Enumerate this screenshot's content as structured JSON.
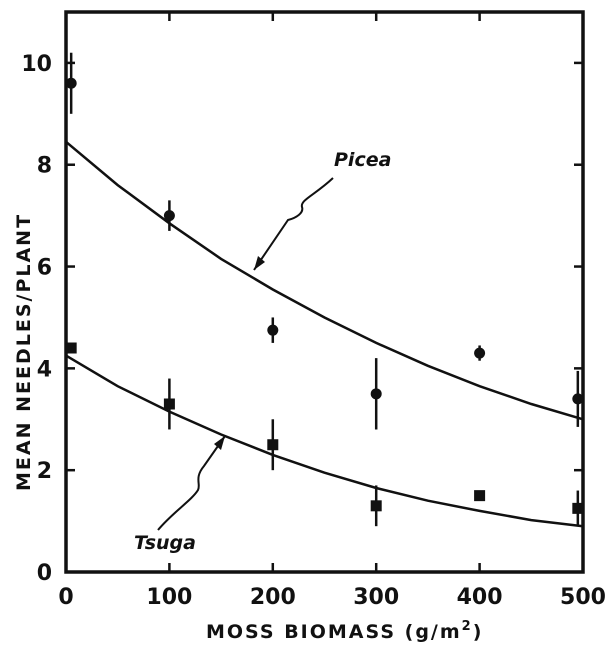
{
  "chart_data": {
    "type": "scatter",
    "xlabel": "MOSS BIOMASS (g/m",
    "xlabel_sup": "2",
    "xlabel_close": ")",
    "ylabel": "MEAN NEEDLES/PLANT",
    "xlim": [
      0,
      500
    ],
    "ylim": [
      0,
      11
    ],
    "xticks": [
      "0",
      "100",
      "200",
      "300",
      "400",
      "500"
    ],
    "yticks": [
      "0",
      "2",
      "4",
      "6",
      "8",
      "10"
    ],
    "grid": false,
    "series": [
      {
        "name": "Picea",
        "marker": "circle",
        "points": [
          {
            "x": 5,
            "y": 9.6,
            "err": 0.6
          },
          {
            "x": 100,
            "y": 7.0,
            "err": 0.3
          },
          {
            "x": 200,
            "y": 4.75,
            "err": 0.25
          },
          {
            "x": 300,
            "y": 3.5,
            "err": 0.7
          },
          {
            "x": 400,
            "y": 4.3,
            "err": 0.15
          },
          {
            "x": 495,
            "y": 3.4,
            "err": 0.55
          }
        ],
        "fit": {
          "x": [
            0,
            50,
            100,
            150,
            200,
            250,
            300,
            350,
            400,
            450,
            500
          ],
          "y": [
            8.45,
            7.6,
            6.85,
            6.15,
            5.55,
            5.0,
            4.5,
            4.05,
            3.65,
            3.3,
            3.0
          ]
        }
      },
      {
        "name": "Tsuga",
        "marker": "square",
        "points": [
          {
            "x": 5,
            "y": 4.4,
            "err": 0.1
          },
          {
            "x": 100,
            "y": 3.3,
            "err": 0.5
          },
          {
            "x": 200,
            "y": 2.5,
            "err": 0.5
          },
          {
            "x": 300,
            "y": 1.3,
            "err": 0.4
          },
          {
            "x": 400,
            "y": 1.5,
            "err": 0
          },
          {
            "x": 495,
            "y": 1.25,
            "err": 0.35
          }
        ],
        "fit": {
          "x": [
            0,
            50,
            100,
            150,
            200,
            250,
            300,
            350,
            400,
            450,
            500
          ],
          "y": [
            4.25,
            3.65,
            3.15,
            2.7,
            2.3,
            1.95,
            1.65,
            1.4,
            1.2,
            1.02,
            0.9
          ]
        }
      }
    ]
  }
}
